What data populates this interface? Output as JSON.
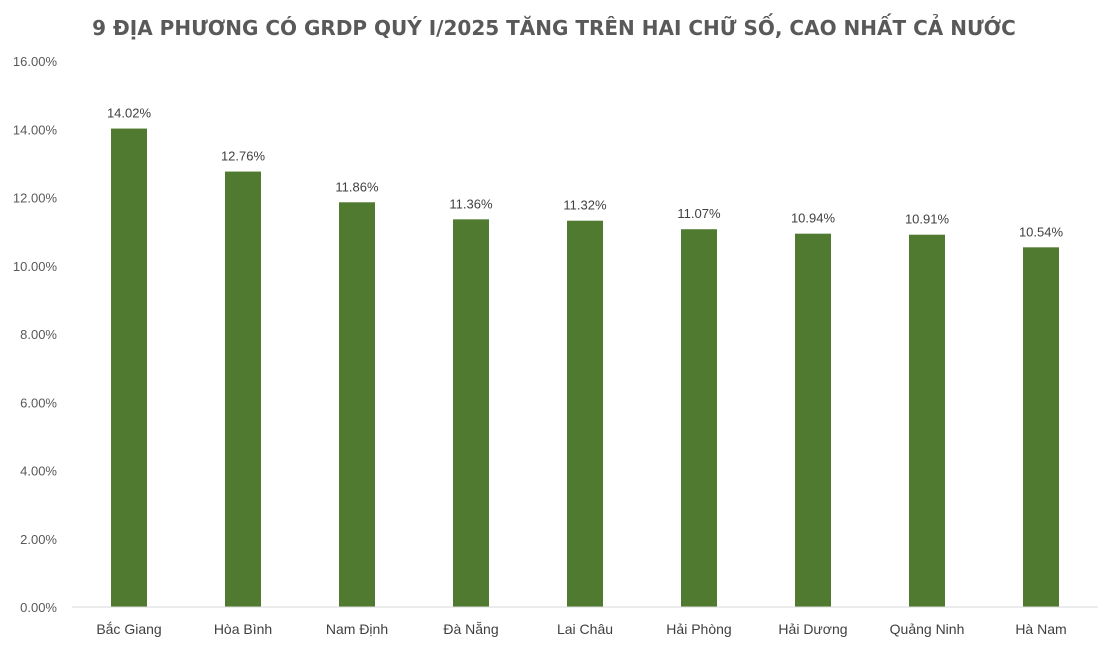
{
  "chart_data": {
    "type": "bar",
    "title": "9 ĐỊA PHƯƠNG CÓ GRDP QUÝ I/2025 TĂNG TRÊN HAI CHỮ SỐ, CAO NHẤT CẢ NƯỚC",
    "xlabel": "",
    "ylabel": "",
    "categories": [
      "Bắc Giang",
      "Hòa Bình",
      "Nam Định",
      "Đà Nẵng",
      "Lai Châu",
      "Hải Phòng",
      "Hải Dương",
      "Quảng Ninh",
      "Hà Nam"
    ],
    "values": [
      14.02,
      12.76,
      11.86,
      11.36,
      11.32,
      11.07,
      10.94,
      10.91,
      10.54
    ],
    "data_labels": [
      "14.02%",
      "12.76%",
      "11.86%",
      "11.36%",
      "11.32%",
      "11.07%",
      "10.94%",
      "10.91%",
      "10.54%"
    ],
    "ylim": [
      0,
      16
    ],
    "yticks": [
      0,
      2,
      4,
      6,
      8,
      10,
      12,
      14,
      16
    ],
    "ytick_labels": [
      "0.00%",
      "2.00%",
      "4.00%",
      "6.00%",
      "8.00%",
      "10.00%",
      "12.00%",
      "14.00%",
      "16.00%"
    ],
    "grid": false,
    "legend": "none",
    "bar_color": "#4f7a30",
    "axis_color": "#d9d9d9"
  }
}
